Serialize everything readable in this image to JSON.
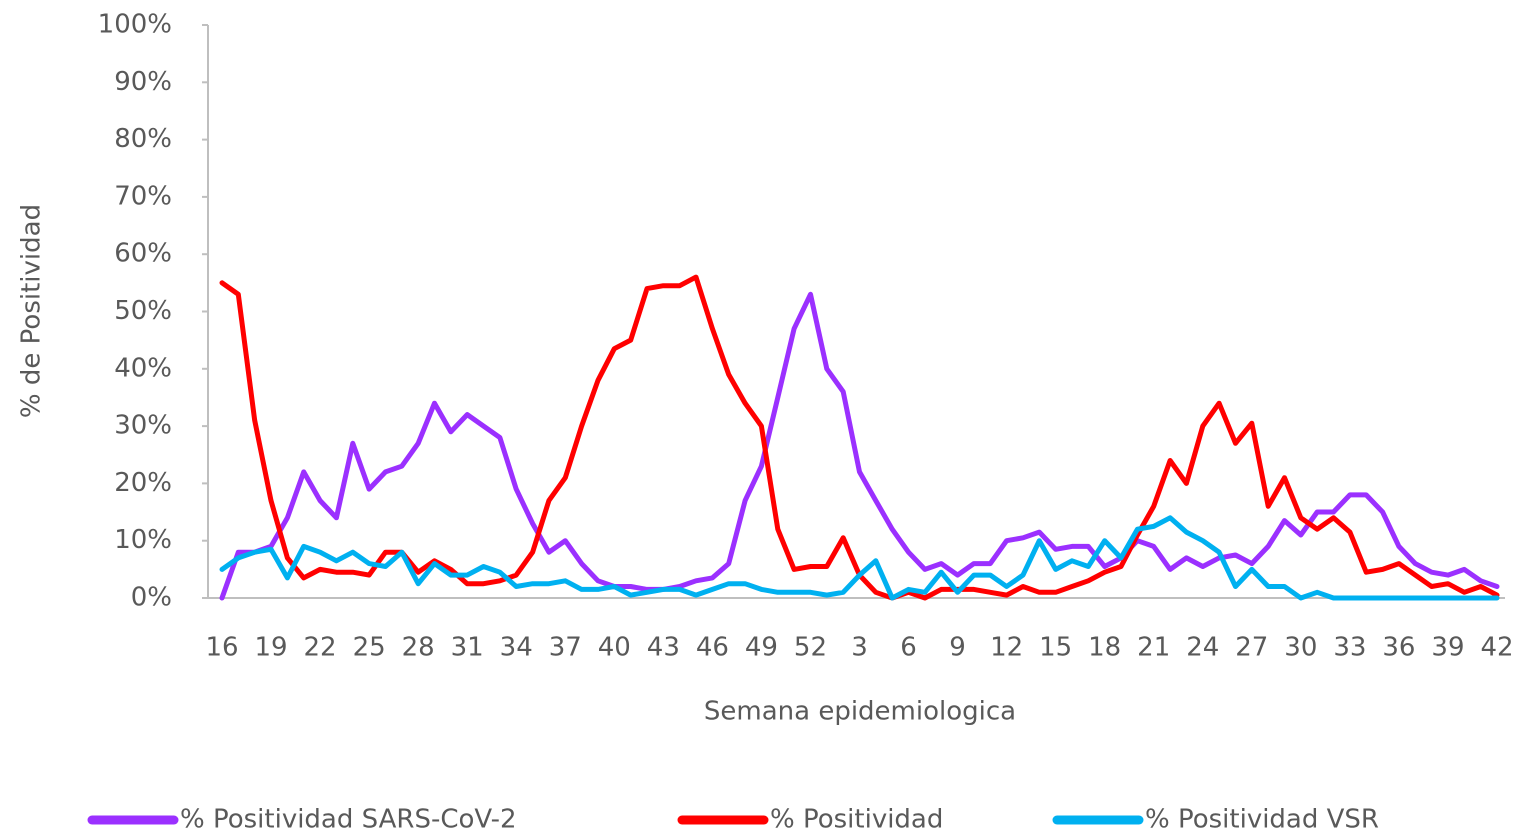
{
  "chart_data": {
    "type": "line",
    "x_label": "Semana epidemiologica",
    "y_label": "% de Positividad",
    "categories": [
      "16",
      null,
      null,
      "19",
      null,
      null,
      "22",
      null,
      null,
      "25",
      null,
      null,
      "28",
      null,
      null,
      "31",
      null,
      null,
      "34",
      null,
      null,
      "37",
      null,
      null,
      "40",
      null,
      null,
      "43",
      null,
      null,
      "46",
      null,
      null,
      "49",
      null,
      null,
      "52",
      null,
      null,
      "3",
      null,
      null,
      "6",
      null,
      null,
      "9",
      null,
      null,
      "12",
      null,
      null,
      "15",
      null,
      null,
      "18",
      null,
      null,
      "21",
      null,
      null,
      "24",
      null,
      null,
      "27",
      null,
      null,
      "30",
      null,
      null,
      "33",
      null,
      null,
      "36",
      null,
      null,
      "39",
      null,
      null,
      "42"
    ],
    "series": [
      {
        "name": "% Positividad SARS-CoV-2",
        "color": "#9b30ff",
        "values": [
          0,
          8,
          8,
          9,
          14,
          22,
          17,
          14,
          27,
          19,
          22,
          23,
          27,
          34,
          29,
          32,
          30,
          28,
          19,
          13,
          8,
          10,
          6,
          3,
          2,
          2,
          1.5,
          1.5,
          2,
          3,
          3.5,
          6,
          17,
          23,
          35,
          47,
          53,
          40,
          36,
          22,
          17,
          12,
          8,
          5,
          6,
          4,
          6,
          6,
          10,
          10.5,
          11.5,
          8.5,
          9,
          9,
          5.5,
          7,
          10,
          9,
          5,
          7,
          5.5,
          7,
          7.5,
          6,
          9,
          13.5,
          11,
          15,
          15,
          18,
          18,
          15,
          9,
          6,
          4.5,
          4,
          5,
          3,
          2
        ]
      },
      {
        "name": "% Positividad",
        "color": "#ff0000",
        "values": [
          55,
          53,
          31,
          17,
          7,
          3.5,
          5,
          4.5,
          4.5,
          4,
          8,
          8,
          4.5,
          6.5,
          5,
          2.5,
          2.5,
          3,
          4,
          8,
          17,
          21,
          30,
          38,
          43.5,
          45,
          54,
          54.5,
          54.5,
          56,
          47,
          39,
          34,
          30,
          12,
          5,
          5.5,
          5.5,
          10.5,
          4,
          1,
          0,
          1,
          0,
          1.5,
          1.5,
          1.5,
          1,
          0.5,
          2,
          1,
          1,
          2,
          3,
          4.5,
          5.5,
          11,
          16,
          24,
          20,
          30,
          34,
          27,
          30.5,
          16,
          21,
          14,
          12,
          14,
          11.5,
          4.5,
          5,
          6,
          4,
          2,
          2.5,
          1,
          2,
          0.5
        ]
      },
      {
        "name": "% Positividad VSR",
        "color": "#00b0f0",
        "values": [
          5,
          7,
          8,
          8.5,
          3.5,
          9,
          8,
          6.5,
          8,
          6,
          5.5,
          8,
          2.5,
          6,
          4,
          4,
          5.5,
          4.5,
          2,
          2.5,
          2.5,
          3,
          1.5,
          1.5,
          2,
          0.5,
          1,
          1.5,
          1.5,
          0.5,
          1.5,
          2.5,
          2.5,
          1.5,
          1,
          1,
          1,
          0.5,
          1,
          4,
          6.5,
          0,
          1.5,
          1,
          4.5,
          1,
          4,
          4,
          2,
          4,
          10,
          5,
          6.5,
          5.5,
          10,
          7,
          12,
          12.5,
          14,
          11.5,
          10,
          8,
          2,
          5,
          2,
          2,
          0,
          1,
          0,
          0,
          0,
          0,
          0,
          0,
          0,
          0,
          0,
          0,
          0
        ]
      }
    ],
    "ylim": [
      0,
      100
    ],
    "yticks": [
      {
        "value": 0,
        "label": "0%"
      },
      {
        "value": 10,
        "label": "10%"
      },
      {
        "value": 20,
        "label": "20%"
      },
      {
        "value": 30,
        "label": "30%"
      },
      {
        "value": 40,
        "label": "40%"
      },
      {
        "value": 50,
        "label": "50%"
      },
      {
        "value": 60,
        "label": "60%"
      },
      {
        "value": 70,
        "label": "70%"
      },
      {
        "value": 80,
        "label": "80%"
      },
      {
        "value": 90,
        "label": "90%"
      },
      {
        "value": 100,
        "label": "100%"
      }
    ],
    "grid": false
  }
}
